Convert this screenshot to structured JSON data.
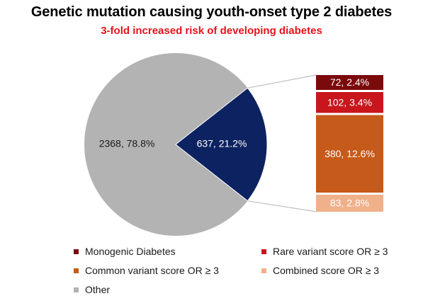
{
  "title": "Genetic mutation causing youth-onset type 2 diabetes",
  "subtitle": "3-fold increased risk of developing diabetes",
  "colors": {
    "other": "#b3b3b3",
    "genetic": "#0d2260",
    "monogenic": "#7a0a0c",
    "rare": "#c8161c",
    "common": "#c65a1a",
    "combined": "#f0b08a"
  },
  "chart_data": {
    "type": "pie",
    "pie": [
      {
        "name": "Other",
        "value": 2368,
        "label": "2368, 78.8%",
        "color_key": "other"
      },
      {
        "name": "",
        "value": 637,
        "label": "637, 21.2%",
        "color_key": "genetic"
      }
    ],
    "breakdown": [
      {
        "name": "Monogenic Diabetes",
        "value": 72,
        "label": "72, 2.4%",
        "color_key": "monogenic"
      },
      {
        "name": "Rare variant score OR ≥ 3",
        "value": 102,
        "label": "102, 3.4%",
        "color_key": "rare"
      },
      {
        "name": "Common variant score OR ≥ 3",
        "value": 380,
        "label": "380, 12.6%",
        "color_key": "common"
      },
      {
        "name": "Combined score OR ≥ 3",
        "value": 83,
        "label": "83, 2.8%",
        "color_key": "combined"
      }
    ],
    "legend": [
      {
        "label": "Monogenic Diabetes",
        "color_key": "monogenic"
      },
      {
        "label": "Rare variant score OR ≥ 3",
        "color_key": "rare"
      },
      {
        "label": "Common variant score OR ≥ 3",
        "color_key": "common"
      },
      {
        "label": "Combined score OR ≥ 3",
        "color_key": "combined"
      },
      {
        "label": "Other",
        "color_key": "other"
      }
    ]
  }
}
